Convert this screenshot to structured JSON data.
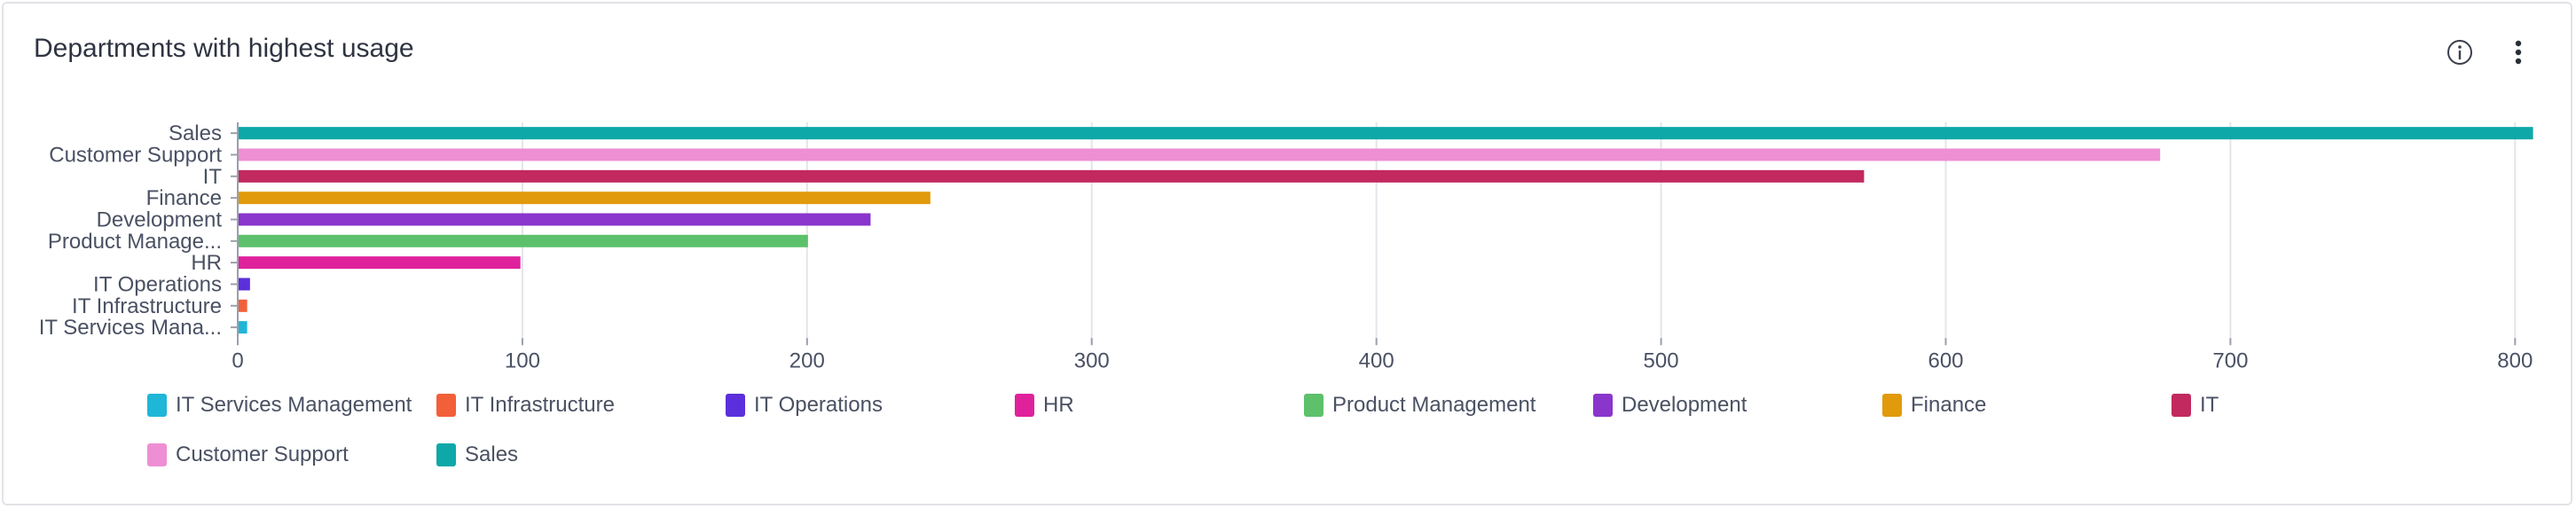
{
  "card": {
    "title": "Departments with highest usage",
    "info_icon": "info-circle-icon",
    "menu_icon": "vertical-dots-menu-icon"
  },
  "colors": {
    "grid": "#e3e5ea",
    "axis_text": "#4a5163",
    "title_text": "#2f3442"
  },
  "chart_data": {
    "type": "bar",
    "orientation": "horizontal",
    "title": "Departments with highest usage",
    "xlabel": "",
    "ylabel": "",
    "xlim": [
      0,
      808
    ],
    "x_ticks": [
      0,
      100,
      200,
      300,
      400,
      500,
      600,
      700,
      800
    ],
    "grid": "vertical",
    "legend_position": "bottom",
    "categories": [
      "Sales",
      "Customer Support",
      "IT",
      "Finance",
      "Development",
      "Product Manage...",
      "HR",
      "IT Operations",
      "IT Infrastructure",
      "IT Services Mana..."
    ],
    "values": [
      806,
      675,
      571,
      243,
      222,
      200,
      99,
      4,
      3,
      3
    ],
    "bar_colors": [
      "#0fa8a8",
      "#ee8fd3",
      "#c2295f",
      "#e19a0c",
      "#8a35cc",
      "#5dc06a",
      "#e0219c",
      "#5b2fdc",
      "#f2603a",
      "#1fb6d8"
    ],
    "legend": [
      {
        "label": "IT Services Management",
        "color": "#1fb6d8"
      },
      {
        "label": "IT Infrastructure",
        "color": "#f2603a"
      },
      {
        "label": "IT Operations",
        "color": "#5b2fdc"
      },
      {
        "label": "HR",
        "color": "#e0219c"
      },
      {
        "label": "Product Management",
        "color": "#5dc06a"
      },
      {
        "label": "Development",
        "color": "#8a35cc"
      },
      {
        "label": "Finance",
        "color": "#e19a0c"
      },
      {
        "label": "IT",
        "color": "#c2295f"
      },
      {
        "label": "Customer Support",
        "color": "#ee8fd3"
      },
      {
        "label": "Sales",
        "color": "#0fa8a8"
      }
    ]
  }
}
